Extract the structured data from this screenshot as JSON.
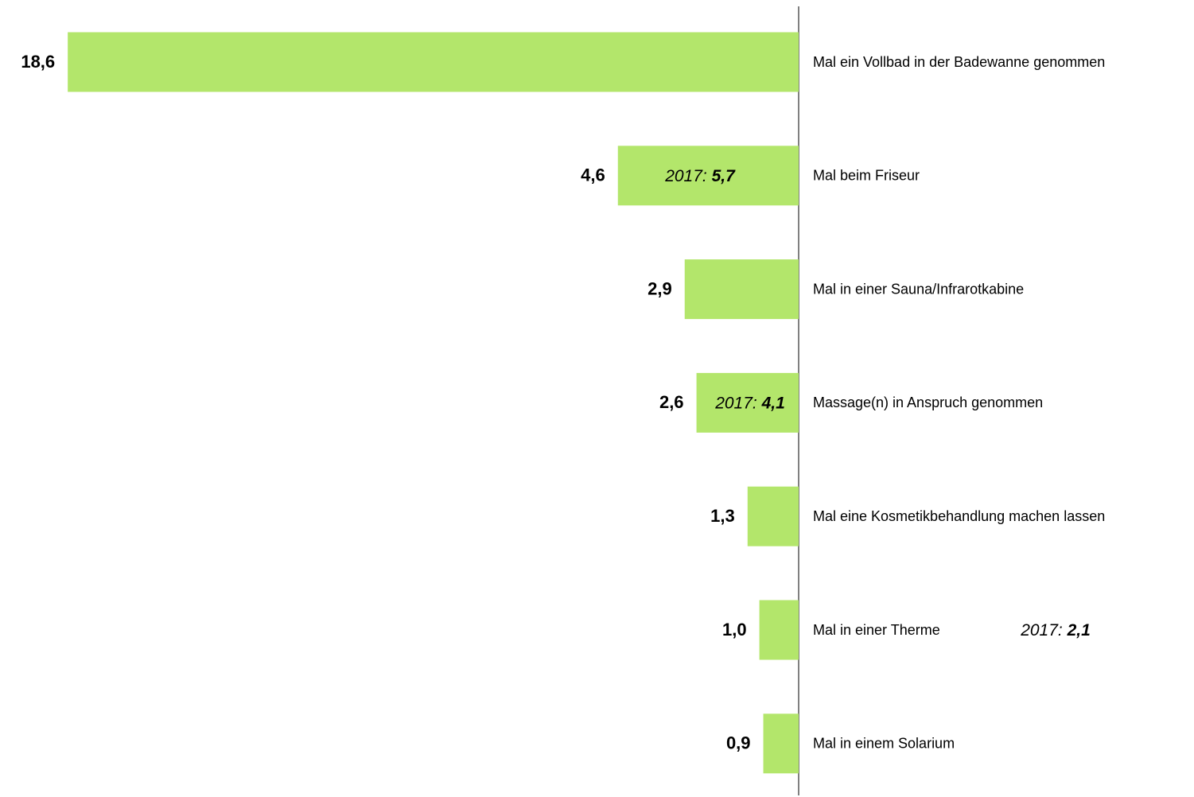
{
  "chart_data": {
    "type": "bar",
    "orientation": "horizontal",
    "color": "#b3e66b",
    "categories": [
      "Mal ein Vollbad in der Badewanne genommen",
      "Mal beim Friseur",
      "Mal in einer Sauna/Infrarotkabine",
      "Massage(n) in Anspruch genommen",
      "Mal eine Kosmetikbehandlung machen lassen",
      "Mal in einer Therme",
      "Mal in einem Solarium"
    ],
    "values": [
      18.6,
      4.6,
      2.9,
      2.6,
      1.3,
      1.0,
      0.9
    ],
    "value_labels": [
      "18,6",
      "4,6",
      "2,9",
      "2,6",
      "1,3",
      "1,0",
      "0,9"
    ],
    "xlim": [
      0,
      20
    ],
    "annotations": [
      {
        "prefix": "2017:",
        "text": "5,7"
      },
      {
        "prefix": "2017:",
        "text": "4,1"
      },
      {
        "prefix": "2017:",
        "text": "2,1"
      }
    ]
  }
}
